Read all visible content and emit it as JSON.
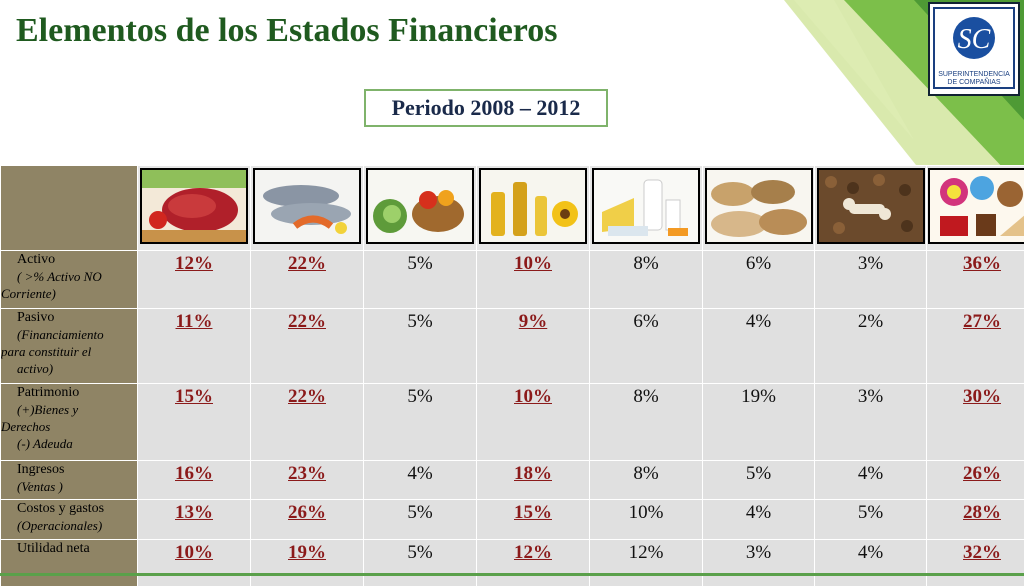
{
  "slide": {
    "title": "Elementos de los Estados Financieros",
    "period": "Periodo 2008 – 2012",
    "logo": {
      "monogram": "SC",
      "line1": "SUPERINTENDENCIA",
      "line2": "DE COMPAÑIAS"
    }
  },
  "table": {
    "categories": [
      "meat",
      "fish",
      "vegetables",
      "oils",
      "dairy",
      "grains",
      "pet-food",
      "sweets"
    ],
    "rows": [
      {
        "label": "Activo",
        "sub": [
          "( >% Activo NO",
          "Corriente)"
        ],
        "values": [
          "12%",
          "22%",
          "5%",
          "10%",
          "8%",
          "6%",
          "3%",
          "36%"
        ]
      },
      {
        "label": "Pasivo",
        "sub": [
          "(Financiamiento",
          "para constituir el",
          "activo)"
        ],
        "values": [
          "11%",
          "22%",
          "5%",
          "9%",
          "6%",
          "4%",
          "2%",
          "27%"
        ]
      },
      {
        "label": "Patrimonio",
        "sub": [
          "(+)Bienes y",
          "Derechos",
          "(-) Adeuda"
        ],
        "values": [
          "15%",
          "22%",
          "5%",
          "10%",
          "8%",
          "19%",
          "3%",
          "30%"
        ]
      },
      {
        "label": "Ingresos",
        "sub": [
          "(Ventas )"
        ],
        "values": [
          "16%",
          "23%",
          "4%",
          "18%",
          "8%",
          "5%",
          "4%",
          "26%"
        ]
      },
      {
        "label": "Costos y gastos",
        "sub": [
          "(Operacionales)"
        ],
        "values": [
          "13%",
          "26%",
          "5%",
          "15%",
          "10%",
          "4%",
          "5%",
          "28%"
        ]
      },
      {
        "label": "Utilidad neta",
        "sub": [],
        "values": [
          "10%",
          "19%",
          "5%",
          "12%",
          "12%",
          "3%",
          "4%",
          "32%"
        ]
      }
    ],
    "highlight_columns": [
      0,
      1,
      3,
      7
    ]
  },
  "colors": {
    "title": "#1f5a1f",
    "label_bg": "#8f8465",
    "cell_bg": "#e0e0e0",
    "highlight": "#8b1a1a",
    "accent": "#7fb36b"
  }
}
